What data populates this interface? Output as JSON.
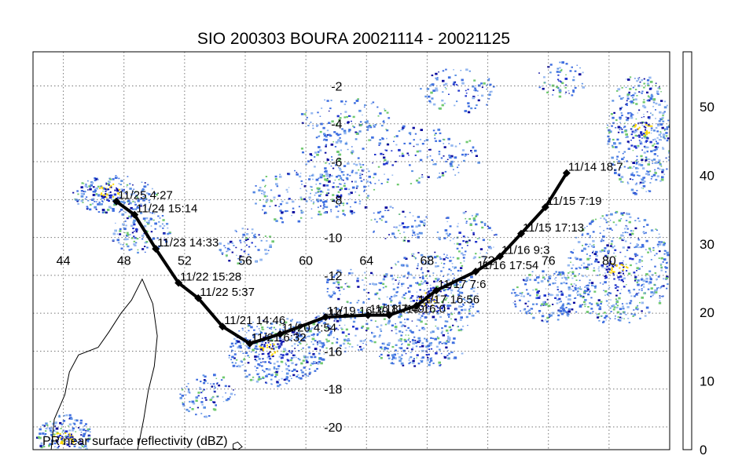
{
  "title": "SIO 200303 BOURA 20021114 - 20021125",
  "caption": "PR near surface reflectivity (dBZ)",
  "map": {
    "lon_range": [
      42,
      84
    ],
    "lat_range": [
      -21.2,
      -0.2
    ],
    "lon_ticks": [
      "44",
      "48",
      "52",
      "56",
      "60",
      "64",
      "68",
      "72",
      "76",
      "80"
    ],
    "lat_ticks": [
      "-2",
      "-4",
      "-6",
      "-8",
      "-10",
      "-12",
      "-14",
      "-16",
      "-18",
      "-20"
    ],
    "grid": true,
    "gridline_lons": [
      44,
      48,
      52,
      56,
      60,
      64,
      68,
      72,
      76,
      80
    ],
    "gridline_lats": [
      -2,
      -4,
      -6,
      -8,
      -10,
      -12,
      -14,
      -16,
      -18,
      -20
    ]
  },
  "track": {
    "color": "#000000",
    "points": [
      {
        "lon": 77.2,
        "lat": -6.6,
        "label": "11/14 18:7"
      },
      {
        "lon": 75.8,
        "lat": -8.4,
        "label": "11/15 7:19"
      },
      {
        "lon": 74.2,
        "lat": -9.8,
        "label": "11/15 17:13"
      },
      {
        "lon": 72.8,
        "lat": -11.0,
        "label": "11/16 9:3"
      },
      {
        "lon": 71.2,
        "lat": -11.8,
        "label": "11/16 17:54"
      },
      {
        "lon": 68.6,
        "lat": -12.8,
        "label": "11/17 7:6"
      },
      {
        "lon": 67.3,
        "lat": -13.6,
        "label": "11/17 16:56"
      },
      {
        "lon": 65.5,
        "lat": -14.1,
        "label": "11/18 16:0"
      },
      {
        "lon": 64.1,
        "lat": -14.1,
        "label": "11/18 7:49"
      },
      {
        "lon": 61.3,
        "lat": -14.2,
        "label": "11/19 16:39"
      },
      {
        "lon": 58.3,
        "lat": -15.1,
        "label": "11/20 4:54"
      },
      {
        "lon": 56.3,
        "lat": -15.6,
        "label": "11/21 6:32"
      },
      {
        "lon": 54.5,
        "lat": -14.7,
        "label": "11/21 14:46"
      },
      {
        "lon": 52.9,
        "lat": -13.2,
        "label": "11/22 5:37"
      },
      {
        "lon": 51.6,
        "lat": -12.4,
        "label": "11/22 15:28"
      },
      {
        "lon": 50.1,
        "lat": -10.6,
        "label": "11/23 14:33"
      },
      {
        "lon": 48.7,
        "lat": -8.8,
        "label": "11/24 15:14"
      },
      {
        "lon": 47.5,
        "lat": -8.1,
        "label": "11/25 4:27"
      }
    ]
  },
  "colorbar": {
    "ticks": [
      "0",
      "10",
      "20",
      "30",
      "40",
      "50"
    ],
    "tick_values": [
      0,
      10,
      20,
      30,
      40,
      50
    ],
    "range": [
      0,
      58
    ],
    "bands": [
      {
        "from": 0,
        "to": 2,
        "color": "#ffffff"
      },
      {
        "from": 2,
        "to": 4,
        "color": "#f2f2f2"
      },
      {
        "from": 4,
        "to": 6,
        "color": "#e4e4e4"
      },
      {
        "from": 6,
        "to": 8,
        "color": "#d6d6d6"
      },
      {
        "from": 8,
        "to": 10,
        "color": "#c8c8c8"
      },
      {
        "from": 10,
        "to": 12,
        "color": "#bababa"
      },
      {
        "from": 12,
        "to": 14,
        "color": "#ababab"
      },
      {
        "from": 14,
        "to": 16,
        "color": "#9b9b9b"
      },
      {
        "from": 16,
        "to": 18,
        "color": "#8cd98c"
      },
      {
        "from": 18,
        "to": 20,
        "color": "#6fc96f"
      },
      {
        "from": 20,
        "to": 22,
        "color": "#c8d8f8"
      },
      {
        "from": 22,
        "to": 24,
        "color": "#afc8f5"
      },
      {
        "from": 24,
        "to": 26,
        "color": "#95b8f0"
      },
      {
        "from": 26,
        "to": 28,
        "color": "#7aa6ea"
      },
      {
        "from": 28,
        "to": 30,
        "color": "#5f93e4"
      },
      {
        "from": 30,
        "to": 32,
        "color": "#3f6fe0"
      },
      {
        "from": 32,
        "to": 34,
        "color": "#2a4fd8"
      },
      {
        "from": 34,
        "to": 36,
        "color": "#1f33cc"
      },
      {
        "from": 36,
        "to": 38,
        "color": "#1420b8"
      },
      {
        "from": 38,
        "to": 40,
        "color": "#0a0a9e"
      },
      {
        "from": 40,
        "to": 42,
        "color": "#ffff00"
      },
      {
        "from": 42,
        "to": 44,
        "color": "#ffd700"
      },
      {
        "from": 44,
        "to": 46,
        "color": "#ffb000"
      },
      {
        "from": 46,
        "to": 48,
        "color": "#ff8c00"
      },
      {
        "from": 48,
        "to": 50,
        "color": "#ff6a00"
      },
      {
        "from": 50,
        "to": 52,
        "color": "#ff3a00"
      },
      {
        "from": 52,
        "to": 54,
        "color": "#ee0000"
      },
      {
        "from": 54,
        "to": 56,
        "color": "#c40000"
      },
      {
        "from": 56,
        "to": 58,
        "color": "#8b0000"
      }
    ]
  },
  "rain_colors": [
    "#3f6fe0",
    "#1f33cc",
    "#5f93e4",
    "#95b8f0",
    "#6fc96f",
    "#0a0a9e",
    "#ffd700"
  ],
  "rain_cells": [
    {
      "lon": 47.3,
      "lat": -7.7,
      "rlon": 2.8,
      "rlat": 1.0,
      "n": 220
    },
    {
      "lon": 49.0,
      "lat": -9.6,
      "rlon": 2.0,
      "rlat": 1.2,
      "n": 120
    },
    {
      "lon": 59.0,
      "lat": -7.8,
      "rlon": 2.6,
      "rlat": 1.4,
      "n": 120
    },
    {
      "lon": 62.0,
      "lat": -7.6,
      "rlon": 2.5,
      "rlat": 1.3,
      "n": 120
    },
    {
      "lon": 65.5,
      "lat": -5.6,
      "rlon": 6.0,
      "rlat": 1.6,
      "n": 260
    },
    {
      "lon": 62.5,
      "lat": -3.6,
      "rlon": 3.0,
      "rlat": 1.0,
      "n": 90
    },
    {
      "lon": 70.0,
      "lat": -2.2,
      "rlon": 2.5,
      "rlat": 1.2,
      "n": 90
    },
    {
      "lon": 76.8,
      "lat": -1.6,
      "rlon": 1.6,
      "rlat": 1.0,
      "n": 60
    },
    {
      "lon": 68.0,
      "lat": -13.2,
      "rlon": 3.4,
      "rlat": 2.5,
      "n": 420
    },
    {
      "lon": 67.5,
      "lat": -16.0,
      "rlon": 3.0,
      "rlat": 0.8,
      "n": 150
    },
    {
      "lon": 58.0,
      "lat": -16.0,
      "rlon": 3.2,
      "rlat": 1.8,
      "n": 420
    },
    {
      "lon": 62.5,
      "lat": -14.8,
      "rlon": 2.5,
      "rlat": 1.2,
      "n": 140
    },
    {
      "lon": 82.0,
      "lat": -4.5,
      "rlon": 2.2,
      "rlat": 3.2,
      "n": 420
    },
    {
      "lon": 80.6,
      "lat": -11.6,
      "rlon": 3.4,
      "rlat": 3.0,
      "n": 520
    },
    {
      "lon": 76.0,
      "lat": -13.0,
      "rlon": 2.5,
      "rlat": 1.4,
      "n": 200
    },
    {
      "lon": 56.0,
      "lat": -10.4,
      "rlon": 1.8,
      "rlat": 1.0,
      "n": 70
    },
    {
      "lon": 44.0,
      "lat": -20.5,
      "rlon": 1.8,
      "rlat": 1.2,
      "n": 160
    },
    {
      "lon": 63.0,
      "lat": -12.5,
      "rlon": 1.8,
      "rlat": 1.0,
      "n": 60
    },
    {
      "lon": 70.5,
      "lat": -10.0,
      "rlon": 2.0,
      "rlat": 1.4,
      "n": 90
    },
    {
      "lon": 66.0,
      "lat": -9.2,
      "rlon": 2.0,
      "rlat": 1.0,
      "n": 70
    },
    {
      "lon": 53.5,
      "lat": -18.3,
      "rlon": 2.0,
      "rlat": 1.2,
      "n": 90
    }
  ],
  "intense_cores": [
    {
      "lon": 68.0,
      "lat": -13.2
    },
    {
      "lon": 57.5,
      "lat": -15.9
    },
    {
      "lon": 82.3,
      "lat": -4.2
    },
    {
      "lon": 80.5,
      "lat": -11.6
    },
    {
      "lon": 47.0,
      "lat": -7.5
    },
    {
      "lon": 44.0,
      "lat": -20.6
    }
  ],
  "coastline": {
    "color": "#000000",
    "madagascar": [
      [
        43.2,
        -21.2
      ],
      [
        43.4,
        -19.6
      ],
      [
        44.1,
        -18.3
      ],
      [
        44.4,
        -17.1
      ],
      [
        45.0,
        -16.2
      ],
      [
        46.3,
        -15.8
      ],
      [
        47.0,
        -15.0
      ],
      [
        47.8,
        -14.0
      ],
      [
        48.5,
        -13.3
      ],
      [
        49.2,
        -12.2
      ],
      [
        49.9,
        -13.5
      ],
      [
        50.2,
        -15.2
      ],
      [
        50.0,
        -16.8
      ],
      [
        49.6,
        -18.1
      ],
      [
        49.3,
        -19.6
      ],
      [
        48.9,
        -21.2
      ]
    ],
    "reunion": [
      [
        55.2,
        -20.9
      ],
      [
        55.5,
        -20.8
      ],
      [
        55.8,
        -21.05
      ],
      [
        55.5,
        -21.2
      ],
      [
        55.2,
        -21.15
      ]
    ]
  }
}
